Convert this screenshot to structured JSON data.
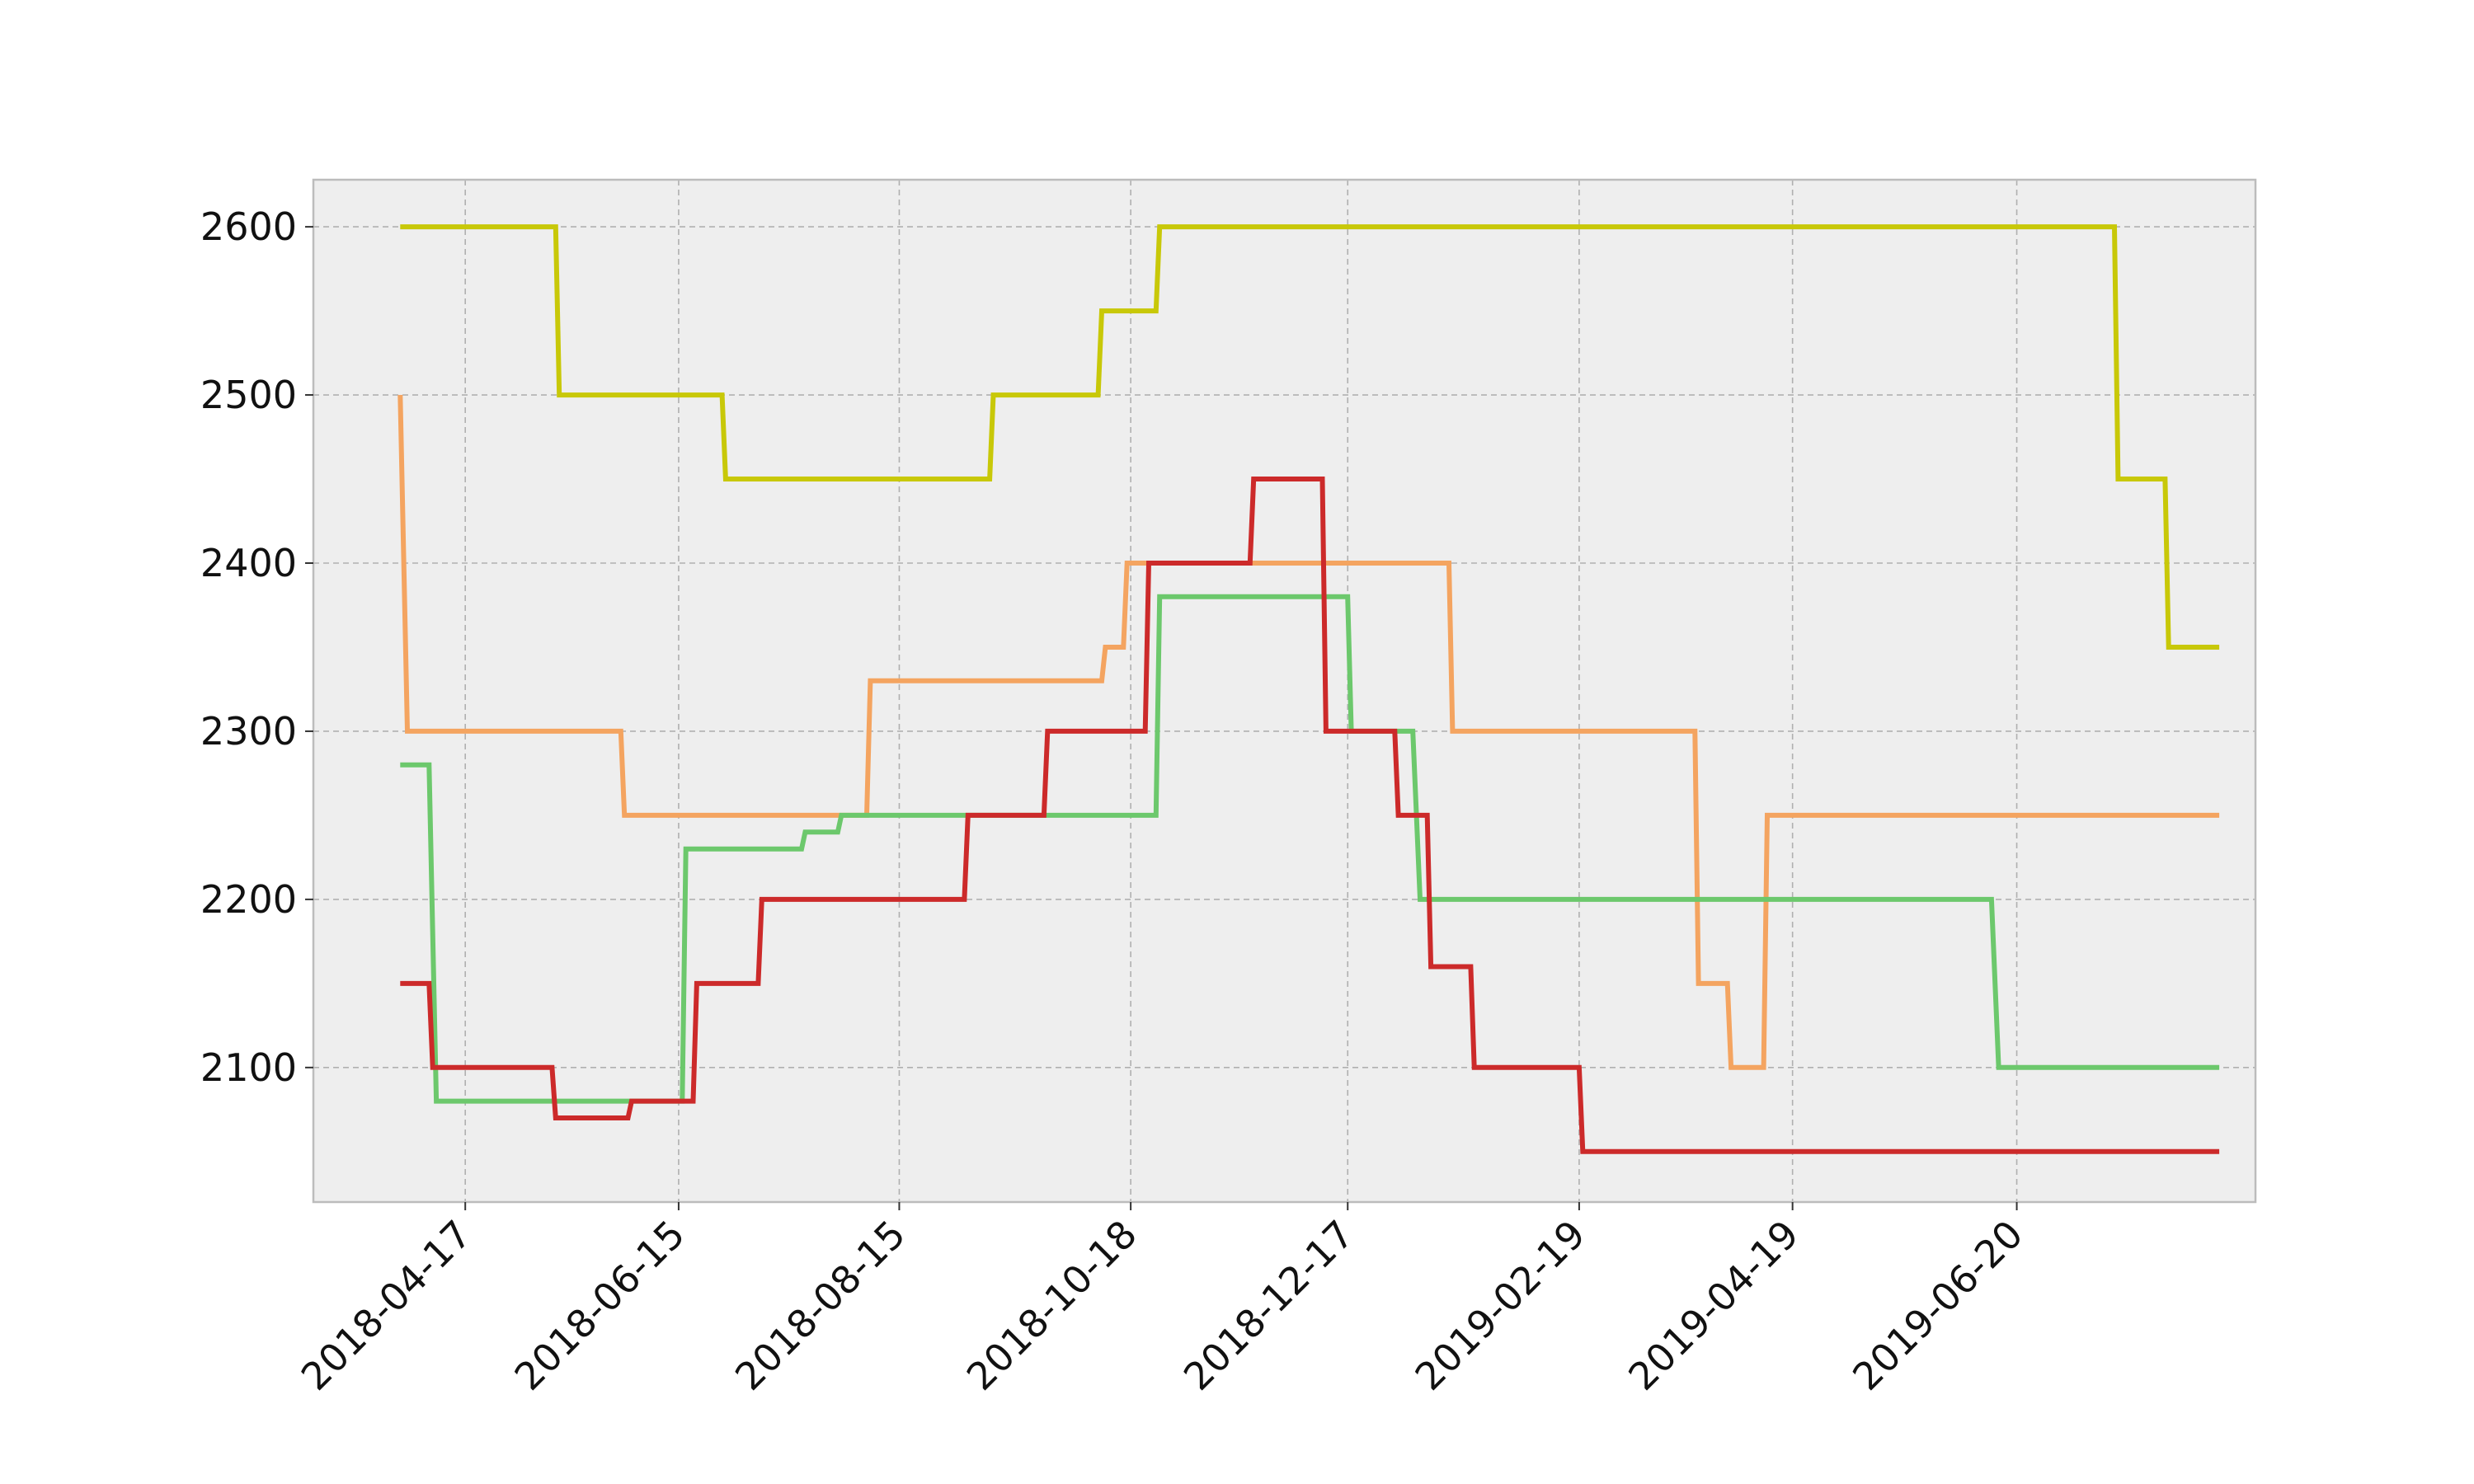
{
  "chart_data": {
    "type": "line",
    "step": true,
    "title": "",
    "xlabel": "",
    "ylabel": "",
    "grid": true,
    "xlim": [
      "2018-03-06",
      "2019-08-25"
    ],
    "ylim": [
      2020,
      2628
    ],
    "y_ticks": [
      2100,
      2200,
      2300,
      2400,
      2500,
      2600
    ],
    "x_ticks": [
      "2018-04-17",
      "2018-06-15",
      "2018-08-15",
      "2018-10-18",
      "2018-12-17",
      "2019-02-19",
      "2019-04-19",
      "2019-06-20"
    ],
    "colors": {
      "background": "#eeeeee",
      "frame": "#bcbcbc",
      "grid": "#b0b0b0"
    },
    "series": [
      {
        "color": "#c8c808",
        "points": [
          [
            "2018-03-30",
            2600
          ],
          [
            "2018-05-12",
            2600
          ],
          [
            "2018-05-13",
            2500
          ],
          [
            "2018-06-27",
            2500
          ],
          [
            "2018-06-28",
            2450
          ],
          [
            "2018-09-09",
            2450
          ],
          [
            "2018-09-10",
            2500
          ],
          [
            "2018-10-09",
            2500
          ],
          [
            "2018-10-10",
            2550
          ],
          [
            "2018-10-25",
            2550
          ],
          [
            "2018-10-26",
            2600
          ],
          [
            "2019-07-17",
            2600
          ],
          [
            "2019-07-18",
            2450
          ],
          [
            "2019-07-31",
            2450
          ],
          [
            "2019-08-01",
            2350
          ],
          [
            "2019-08-15",
            2350
          ]
        ]
      },
      {
        "color": "#f4a460",
        "points": [
          [
            "2018-03-30",
            2500
          ],
          [
            "2018-04-01",
            2300
          ],
          [
            "2018-05-30",
            2300
          ],
          [
            "2018-05-31",
            2250
          ],
          [
            "2018-08-06",
            2250
          ],
          [
            "2018-08-07",
            2330
          ],
          [
            "2018-10-10",
            2330
          ],
          [
            "2018-10-11",
            2350
          ],
          [
            "2018-10-16",
            2350
          ],
          [
            "2018-10-17",
            2400
          ],
          [
            "2019-01-14",
            2400
          ],
          [
            "2019-01-15",
            2300
          ],
          [
            "2019-03-23",
            2300
          ],
          [
            "2019-03-24",
            2150
          ],
          [
            "2019-04-01",
            2150
          ],
          [
            "2019-04-02",
            2100
          ],
          [
            "2019-04-11",
            2100
          ],
          [
            "2019-04-12",
            2250
          ],
          [
            "2019-08-15",
            2250
          ]
        ]
      },
      {
        "color": "#6cc86c",
        "points": [
          [
            "2018-03-30",
            2280
          ],
          [
            "2018-04-07",
            2280
          ],
          [
            "2018-04-09",
            2080
          ],
          [
            "2018-06-16",
            2080
          ],
          [
            "2018-06-17",
            2230
          ],
          [
            "2018-07-19",
            2230
          ],
          [
            "2018-07-20",
            2240
          ],
          [
            "2018-07-29",
            2240
          ],
          [
            "2018-07-30",
            2250
          ],
          [
            "2018-10-25",
            2250
          ],
          [
            "2018-10-26",
            2380
          ],
          [
            "2018-12-17",
            2380
          ],
          [
            "2018-12-18",
            2300
          ],
          [
            "2019-01-04",
            2300
          ],
          [
            "2019-01-06",
            2200
          ],
          [
            "2019-06-13",
            2200
          ],
          [
            "2019-06-15",
            2100
          ],
          [
            "2019-08-15",
            2100
          ]
        ]
      },
      {
        "color": "#cc2a2a",
        "points": [
          [
            "2018-03-30",
            2150
          ],
          [
            "2018-04-07",
            2150
          ],
          [
            "2018-04-08",
            2100
          ],
          [
            "2018-05-11",
            2100
          ],
          [
            "2018-05-12",
            2070
          ],
          [
            "2018-06-01",
            2070
          ],
          [
            "2018-06-02",
            2080
          ],
          [
            "2018-06-19",
            2080
          ],
          [
            "2018-06-20",
            2150
          ],
          [
            "2018-07-07",
            2150
          ],
          [
            "2018-07-08",
            2200
          ],
          [
            "2018-09-02",
            2200
          ],
          [
            "2018-09-03",
            2250
          ],
          [
            "2018-09-24",
            2250
          ],
          [
            "2018-09-25",
            2300
          ],
          [
            "2018-10-22",
            2300
          ],
          [
            "2018-10-23",
            2400
          ],
          [
            "2018-11-20",
            2400
          ],
          [
            "2018-11-21",
            2450
          ],
          [
            "2018-12-10",
            2450
          ],
          [
            "2018-12-11",
            2300
          ],
          [
            "2018-12-30",
            2300
          ],
          [
            "2018-12-31",
            2250
          ],
          [
            "2019-01-08",
            2250
          ],
          [
            "2019-01-09",
            2160
          ],
          [
            "2019-01-20",
            2160
          ],
          [
            "2019-01-21",
            2100
          ],
          [
            "2019-02-19",
            2100
          ],
          [
            "2019-02-20",
            2050
          ],
          [
            "2019-08-15",
            2050
          ]
        ]
      }
    ]
  }
}
